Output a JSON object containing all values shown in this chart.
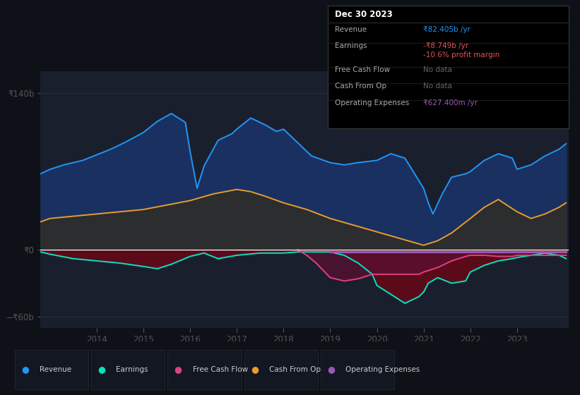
{
  "bg_color": "#0e1117",
  "plot_bg_color": "#131722",
  "panel_bg": "#1a1f2e",
  "grid_color": "#2a3040",
  "zero_line_color": "#ffffff",
  "ylim": [
    -70,
    160
  ],
  "revenue_color": "#2196f3",
  "revenue_fill": "#1a3a6e",
  "earnings_color": "#00e5c0",
  "earnings_fill_pos": "#1a4a3a",
  "earnings_fill_neg": "#5a0a1a",
  "cashfromop_color": "#e89c2f",
  "cashfromop_fill": "#333330",
  "freecash_color": "#e0407f",
  "freecash_fill": "#6a0a2a",
  "opex_color": "#9b59b6",
  "revenue_x": [
    2012.8,
    2013.0,
    2013.3,
    2013.7,
    2014.0,
    2014.3,
    2014.6,
    2015.0,
    2015.3,
    2015.6,
    2015.9,
    2016.0,
    2016.15,
    2016.3,
    2016.6,
    2016.9,
    2017.0,
    2017.3,
    2017.6,
    2017.85,
    2018.0,
    2018.3,
    2018.6,
    2019.0,
    2019.3,
    2019.6,
    2020.0,
    2020.3,
    2020.6,
    2021.0,
    2021.1,
    2021.2,
    2021.4,
    2021.6,
    2021.9,
    2022.0,
    2022.3,
    2022.6,
    2022.9,
    2023.0,
    2023.3,
    2023.6,
    2023.9,
    2024.05
  ],
  "revenue_y": [
    68,
    72,
    76,
    80,
    85,
    90,
    96,
    105,
    115,
    122,
    114,
    88,
    55,
    75,
    98,
    104,
    108,
    118,
    112,
    106,
    108,
    96,
    84,
    78,
    76,
    78,
    80,
    86,
    82,
    55,
    42,
    32,
    50,
    65,
    68,
    70,
    80,
    86,
    82,
    72,
    76,
    84,
    90,
    95
  ],
  "earnings_x": [
    2012.8,
    2013.0,
    2013.5,
    2014.0,
    2014.5,
    2015.0,
    2015.3,
    2015.6,
    2016.0,
    2016.3,
    2016.6,
    2017.0,
    2017.5,
    2018.0,
    2018.3,
    2018.7,
    2019.0,
    2019.3,
    2019.6,
    2019.9,
    2020.0,
    2020.3,
    2020.6,
    2020.9,
    2021.0,
    2021.1,
    2021.3,
    2021.6,
    2021.9,
    2022.0,
    2022.3,
    2022.6,
    2022.9,
    2023.0,
    2023.3,
    2023.6,
    2023.9,
    2024.05
  ],
  "earnings_y": [
    -2,
    -4,
    -8,
    -10,
    -12,
    -15,
    -17,
    -13,
    -6,
    -3,
    -8,
    -5,
    -3,
    -3,
    -2,
    -2,
    -2,
    -5,
    -12,
    -22,
    -32,
    -40,
    -48,
    -42,
    -38,
    -30,
    -25,
    -30,
    -28,
    -20,
    -14,
    -10,
    -8,
    -7,
    -5,
    -3,
    -5,
    -8
  ],
  "cashfromop_x": [
    2012.8,
    2013.0,
    2013.5,
    2014.0,
    2014.5,
    2015.0,
    2015.5,
    2016.0,
    2016.5,
    2017.0,
    2017.3,
    2017.6,
    2018.0,
    2018.5,
    2019.0,
    2019.5,
    2020.0,
    2020.5,
    2021.0,
    2021.3,
    2021.6,
    2022.0,
    2022.3,
    2022.6,
    2023.0,
    2023.3,
    2023.6,
    2023.9,
    2024.05
  ],
  "cashfromop_y": [
    25,
    28,
    30,
    32,
    34,
    36,
    40,
    44,
    50,
    54,
    52,
    48,
    42,
    36,
    28,
    22,
    16,
    10,
    4,
    8,
    15,
    28,
    38,
    45,
    34,
    28,
    32,
    38,
    42
  ],
  "freecash_x": [
    2018.3,
    2018.5,
    2018.7,
    2019.0,
    2019.3,
    2019.6,
    2019.9,
    2020.0,
    2020.3,
    2020.6,
    2020.9,
    2021.0,
    2021.3,
    2021.6,
    2021.9,
    2022.0,
    2022.3,
    2022.6,
    2022.9,
    2023.0,
    2023.3,
    2023.5,
    2023.7,
    2024.05
  ],
  "freecash_y": [
    0,
    -5,
    -12,
    -25,
    -28,
    -26,
    -22,
    -22,
    -22,
    -22,
    -22,
    -20,
    -16,
    -10,
    -6,
    -5,
    -5,
    -6,
    -6,
    -5,
    -5,
    -5,
    -5,
    -5
  ],
  "opex_x": [
    2019.0,
    2019.3,
    2019.6,
    2019.9,
    2020.0,
    2020.3,
    2020.6,
    2020.9,
    2021.0,
    2021.3,
    2021.6,
    2021.9,
    2022.0,
    2022.3,
    2022.6,
    2022.9,
    2023.0,
    2023.3,
    2023.6,
    2023.9,
    2024.05
  ],
  "opex_y": [
    -2,
    -2,
    -2,
    -2,
    -2,
    -2,
    -2,
    -2,
    -2,
    -2,
    -2,
    -2,
    -2,
    -2,
    -2,
    -2,
    -2,
    -2,
    -2,
    -2,
    -2
  ],
  "legend_items": [
    {
      "label": "Revenue",
      "color": "#2196f3"
    },
    {
      "label": "Earnings",
      "color": "#00e5c0"
    },
    {
      "label": "Free Cash Flow",
      "color": "#e0407f"
    },
    {
      "label": "Cash From Op",
      "color": "#e89c2f"
    },
    {
      "label": "Operating Expenses",
      "color": "#9b59b6"
    }
  ],
  "tooltip_title": "Dec 30 2023",
  "tooltip_rows": [
    {
      "label": "Revenue",
      "value": "₹82.405b /yr",
      "value_color": "#2196f3",
      "subvalue": null,
      "subcolor": null
    },
    {
      "label": "Earnings",
      "value": "-₹8.749b /yr",
      "value_color": "#e05555",
      "subvalue": "-10.6% profit margin",
      "subcolor": "#e05555"
    },
    {
      "label": "Free Cash Flow",
      "value": "No data",
      "value_color": "#666666",
      "subvalue": null,
      "subcolor": null
    },
    {
      "label": "Cash From Op",
      "value": "No data",
      "value_color": "#666666",
      "subvalue": null,
      "subcolor": null
    },
    {
      "label": "Operating Expenses",
      "value": "₹627.400m /yr",
      "value_color": "#9b59b6",
      "subvalue": null,
      "subcolor": null
    }
  ]
}
